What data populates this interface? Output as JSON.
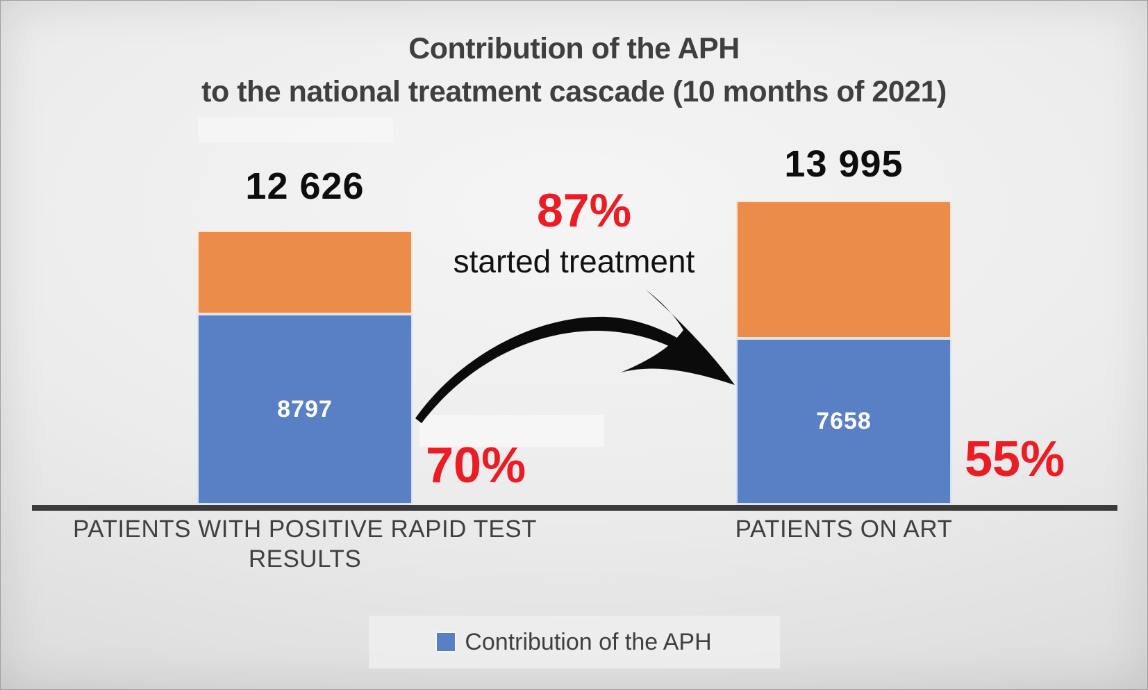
{
  "chart_data": {
    "type": "bar",
    "variant": "stacked-column",
    "title": [
      "Contribution of the APH",
      "to the national treatment cascade (10 months of 2021)"
    ],
    "bars": [
      {
        "category": "PATIENTS WITH POSITIVE RAPID TEST RESULTS",
        "category_lines": [
          "PATIENTS WITH POSITIVE RAPID TEST",
          "RESULTS"
        ],
        "total": 12626,
        "total_label": "12 626",
        "aph_value": 8797,
        "aph_label": "8797",
        "remainder_value": 3829,
        "percent_label": "70%"
      },
      {
        "category": "PATIENTS ON ART",
        "category_lines": [
          "PATIENTS ON ART",
          ""
        ],
        "total": 13995,
        "total_label": "13 995",
        "aph_value": 7658,
        "aph_label": "7658",
        "remainder_value": 6337,
        "percent_label": "55%"
      }
    ],
    "annotation": {
      "percent": "87%",
      "text": "started treatment"
    },
    "legend": {
      "label": "Contribution of the APH",
      "position": "bottom"
    },
    "axis": {
      "baseline": true,
      "gridlines": false,
      "value_axis_hidden": true
    },
    "colors": {
      "aph_blue": "#597FC5",
      "other_orange": "#EB8C4B",
      "percent_red": "#EC1C24",
      "text_dark": "#3F3F3F",
      "baseline": "#3A3A3A",
      "arrow_black": "#0B0B0B"
    }
  }
}
